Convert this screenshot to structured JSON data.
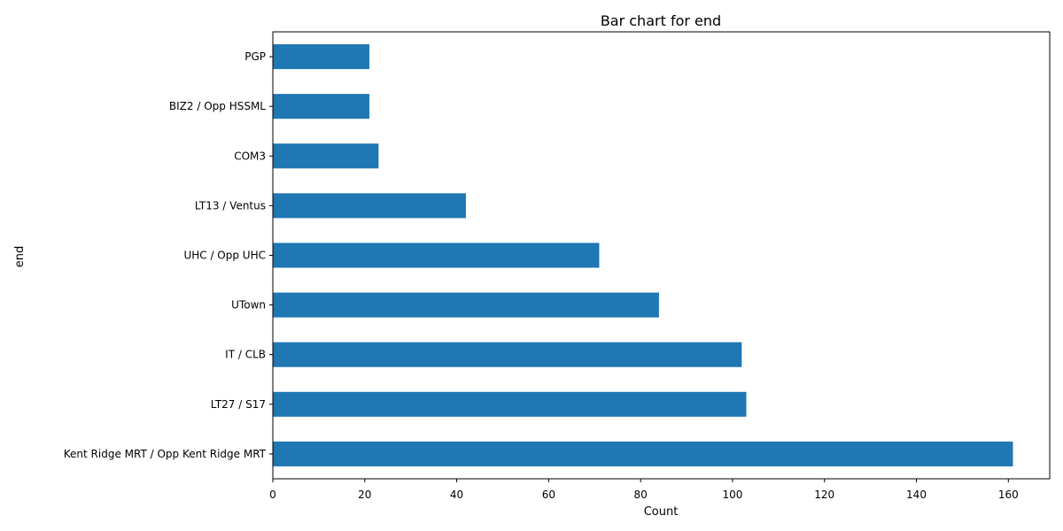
{
  "chart_data": {
    "type": "bar",
    "orientation": "horizontal",
    "title": "Bar chart for end",
    "xlabel": "Count",
    "ylabel": "end",
    "categories": [
      "Kent Ridge MRT / Opp Kent Ridge MRT",
      "LT27 / S17",
      "IT / CLB",
      "UTown",
      "UHC / Opp UHC",
      "LT13 / Ventus",
      "COM3",
      "BIZ2 / Opp HSSML",
      "PGP"
    ],
    "values": [
      161,
      103,
      102,
      84,
      71,
      42,
      23,
      21,
      21
    ],
    "xlim": [
      0,
      169
    ],
    "xticks": [
      0,
      20,
      40,
      60,
      80,
      100,
      120,
      140,
      160
    ],
    "grid": false,
    "bar_color": "#1f77b4"
  }
}
